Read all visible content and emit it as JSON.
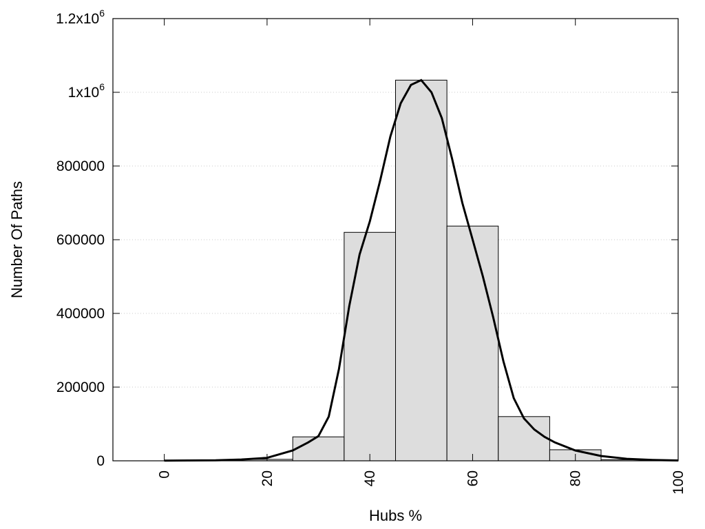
{
  "chart_data": {
    "type": "bar",
    "xlabel": "Hubs %",
    "ylabel": "Number Of Paths",
    "xlim": [
      -10,
      100
    ],
    "ylim": [
      0,
      1200000
    ],
    "x_ticks": [
      0,
      20,
      40,
      60,
      80,
      100
    ],
    "y_ticks": [
      0,
      200000,
      400000,
      600000,
      800000,
      1000000,
      1200000
    ],
    "y_tick_labels": [
      {
        "text": "0",
        "exp": ""
      },
      {
        "text": "200000",
        "exp": ""
      },
      {
        "text": "400000",
        "exp": ""
      },
      {
        "text": "600000",
        "exp": ""
      },
      {
        "text": "800000",
        "exp": ""
      },
      {
        "text": "1x10",
        "exp": "6"
      },
      {
        "text": "1.2x10",
        "exp": "6"
      }
    ],
    "grid": true,
    "bar_color": "#dddddd",
    "bar_edge_color": "#000000",
    "curve_color": "#000000",
    "bars": [
      {
        "x": 0,
        "value": 0
      },
      {
        "x": 10,
        "value": 0
      },
      {
        "x": 20,
        "value": 4000
      },
      {
        "x": 30,
        "value": 65000
      },
      {
        "x": 40,
        "value": 620000
      },
      {
        "x": 50,
        "value": 1033000
      },
      {
        "x": 60,
        "value": 637000
      },
      {
        "x": 70,
        "value": 120000
      },
      {
        "x": 80,
        "value": 30000
      },
      {
        "x": 90,
        "value": 3000
      }
    ],
    "bar_width": 10,
    "curve": {
      "x": [
        0,
        10,
        15,
        20,
        25,
        28,
        30,
        32,
        34,
        36,
        38,
        40,
        42,
        44,
        46,
        48,
        50,
        52,
        54,
        56,
        58,
        60,
        62,
        64,
        66,
        68,
        70,
        72,
        74,
        76,
        80,
        85,
        90,
        95,
        100
      ],
      "y": [
        500,
        1500,
        3500,
        8000,
        28000,
        50000,
        67000,
        120000,
        250000,
        420000,
        560000,
        650000,
        760000,
        880000,
        970000,
        1020000,
        1033000,
        1000000,
        930000,
        820000,
        700000,
        600000,
        500000,
        390000,
        270000,
        170000,
        115000,
        85000,
        65000,
        50000,
        28000,
        13000,
        5500,
        2500,
        1000
      ]
    }
  }
}
